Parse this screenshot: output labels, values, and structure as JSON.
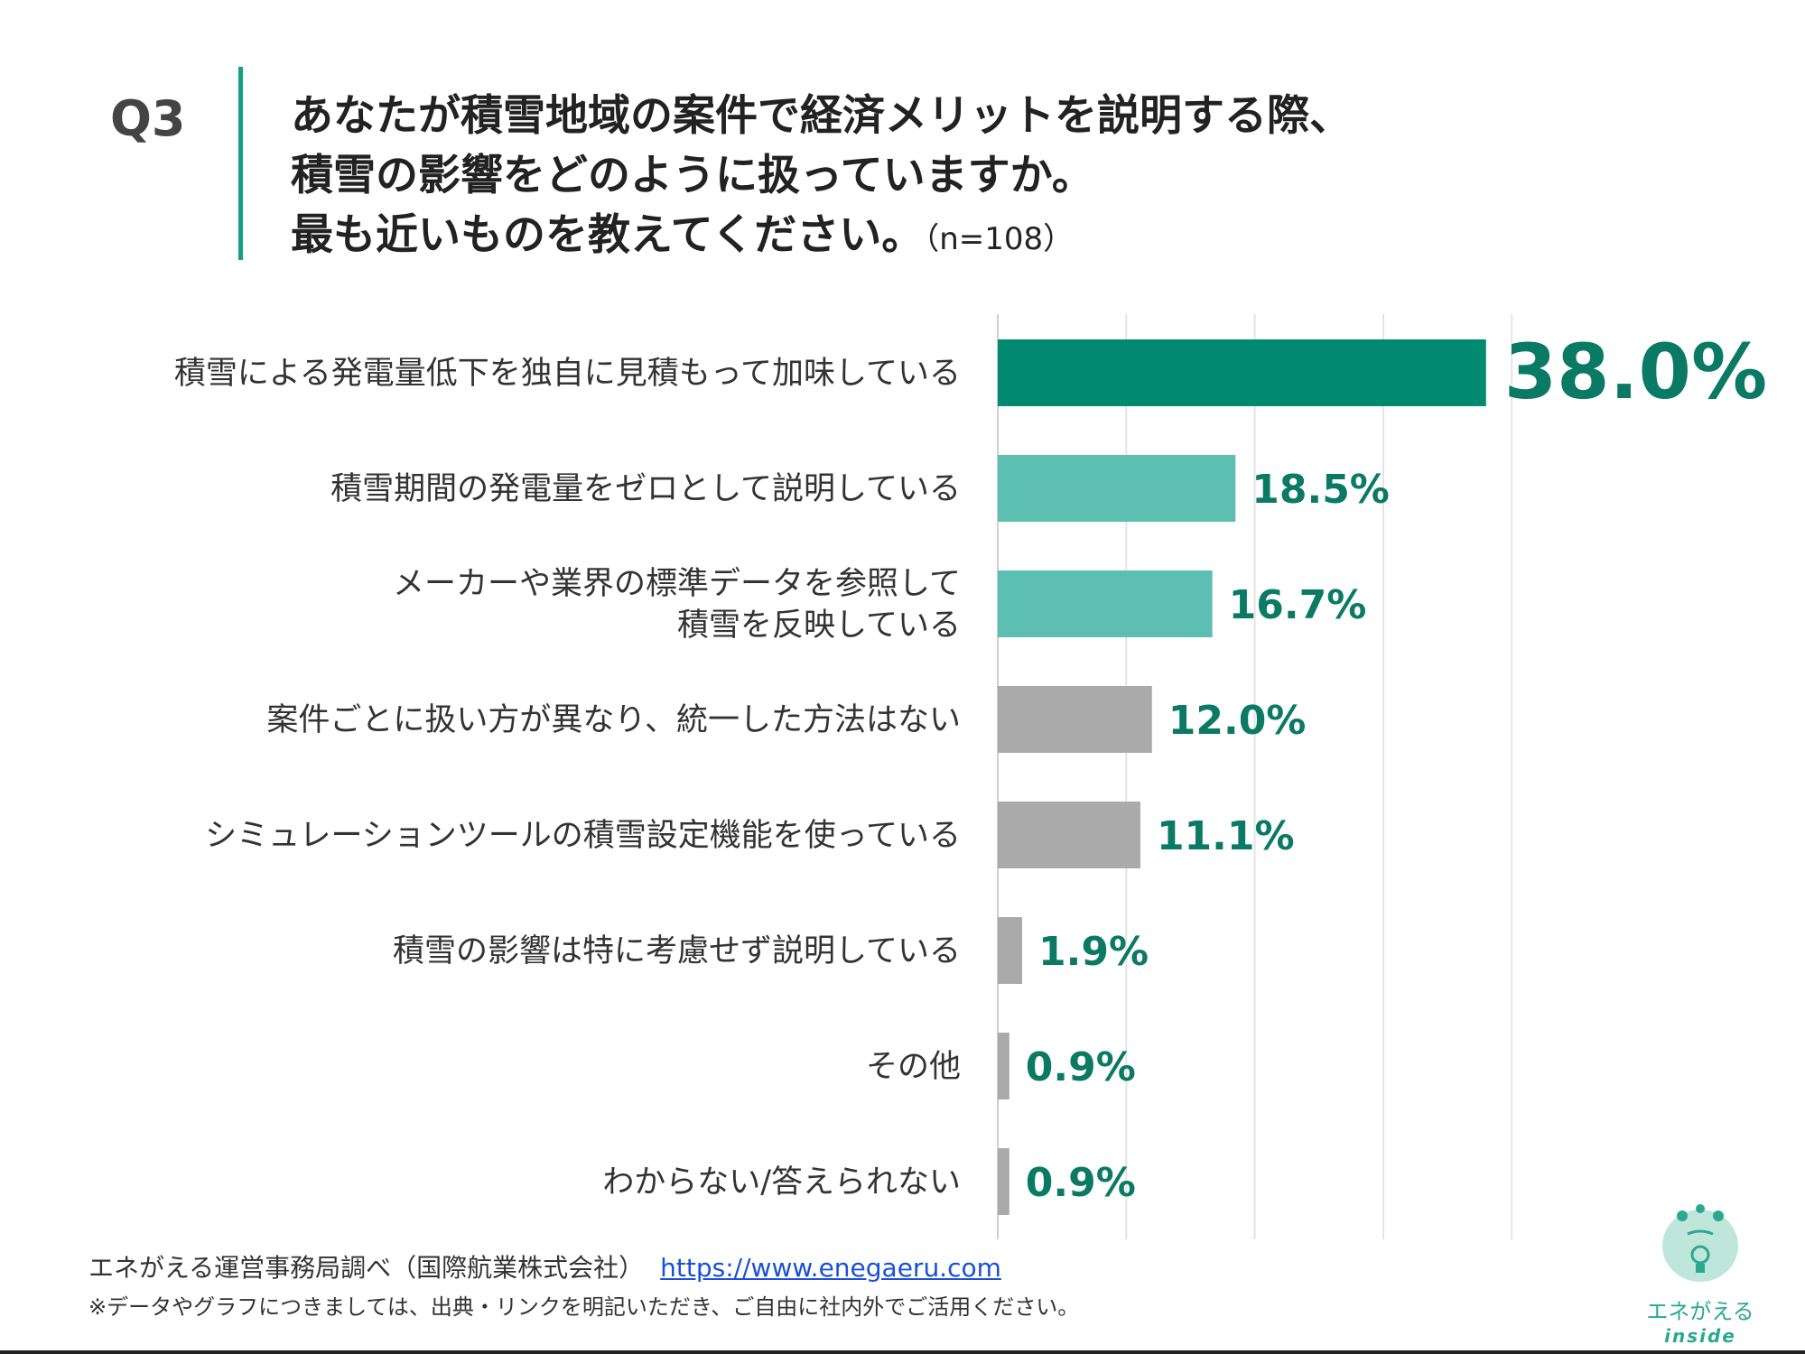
{
  "question": {
    "number": "Q3",
    "lines": [
      "あなたが積雪地域の案件で経済メリットを説明する際、",
      "積雪の影響をどのように扱っていますか。",
      "最も近いものを教えてください。"
    ],
    "sample": "（n=108）"
  },
  "chart_data": {
    "type": "bar",
    "orientation": "horizontal",
    "categories": [
      "積雪による発電量低下を独自に見積もって加味している",
      "積雪期間の発電量をゼロとして説明している",
      "メーカーや業界の標準データを参照して\n積雪を反映している",
      "案件ごとに扱い方が異なり、統一した方法はない",
      "シミュレーションツールの積雪設定機能を使っている",
      "積雪の影響は特に考慮せず説明している",
      "その他",
      "わからない/答えられない"
    ],
    "values": [
      38.0,
      18.5,
      16.7,
      12.0,
      11.1,
      1.9,
      0.9,
      0.9
    ],
    "value_labels": [
      "38.0%",
      "18.5%",
      "16.7%",
      "12.0%",
      "11.1%",
      "1.9%",
      "0.9%",
      "0.9%"
    ],
    "bar_colors": [
      "#008a70",
      "#5cbfb2",
      "#5cbfb2",
      "#aaaaaa",
      "#aaaaaa",
      "#aaaaaa",
      "#aaaaaa",
      "#aaaaaa"
    ],
    "label_color": "#0a7a64",
    "xlim": [
      0,
      40
    ],
    "grid": true,
    "grid_step": 10
  },
  "footer": {
    "source": "エネがえる運営事務局調べ（国際航業株式会社）",
    "url": "https://www.enegaeru.com",
    "note": "※データやグラフにつきましては、出典・リンクを明記いただき、ご自由に社内外でご活用ください。"
  },
  "logo": {
    "text": "エネがえる",
    "sub": "inside"
  }
}
